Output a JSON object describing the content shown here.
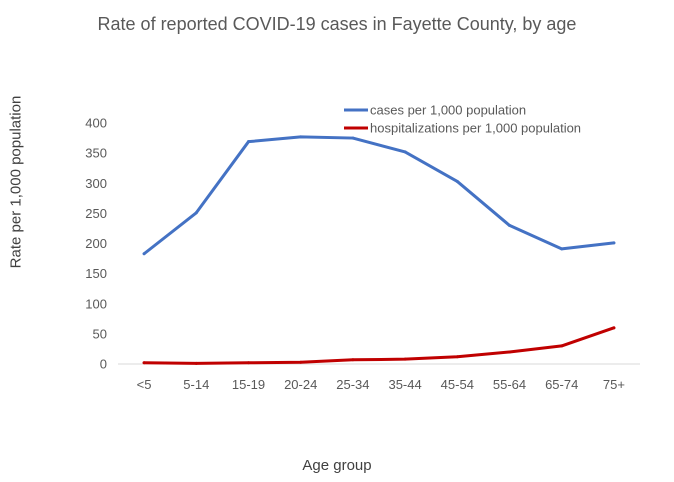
{
  "chart_data": {
    "type": "line",
    "title": "Rate of reported COVID-19 cases in Fayette County, by age",
    "xlabel": "Age group",
    "ylabel": "Rate per 1,000 population",
    "categories": [
      "<5",
      "5-14",
      "15-19",
      "20-24",
      "25-34",
      "35-44",
      "45-54",
      "55-64",
      "65-74",
      "75+"
    ],
    "ylim": [
      0,
      400
    ],
    "yticks": [
      0,
      50,
      100,
      150,
      200,
      250,
      300,
      350,
      400
    ],
    "grid": false,
    "legend_position": "top-right",
    "series": [
      {
        "name": "cases per 1,000 population",
        "color": "#4472C4",
        "values": [
          183,
          251,
          369,
          377,
          375,
          352,
          303,
          230,
          191,
          201
        ]
      },
      {
        "name": "hospitalizations per 1,000 population",
        "color": "#C00000",
        "values": [
          2,
          1,
          2,
          3,
          7,
          8,
          12,
          20,
          30,
          60
        ]
      }
    ]
  }
}
